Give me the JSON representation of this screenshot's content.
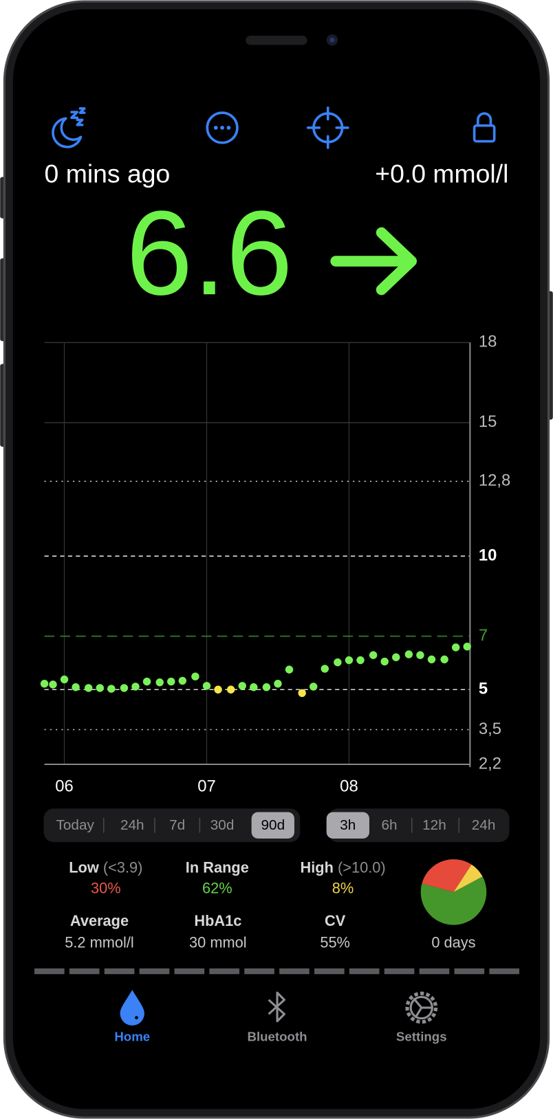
{
  "status": {
    "age": "0 mins ago",
    "delta": "+0.0 mmol/l"
  },
  "reading": {
    "value": 6.6
  },
  "chart_data": {
    "type": "scatter",
    "series": [
      {
        "color": "#7cf05a",
        "x": [
          5.86,
          5.92,
          6.0,
          6.08,
          6.17,
          6.25,
          6.33,
          6.42,
          6.5,
          6.58,
          6.67,
          6.75,
          6.83,
          6.92,
          7.0,
          7.25,
          7.33,
          7.42,
          7.5,
          7.58,
          7.75,
          7.83,
          7.92,
          8.0,
          8.08,
          8.17,
          8.25,
          8.33,
          8.42,
          8.5,
          8.58,
          8.67,
          8.75,
          8.83
        ],
        "values": [
          5.22,
          5.19,
          5.38,
          5.09,
          5.06,
          5.06,
          5.03,
          5.06,
          5.11,
          5.3,
          5.27,
          5.3,
          5.33,
          5.49,
          5.14,
          5.14,
          5.09,
          5.09,
          5.22,
          5.75,
          5.11,
          5.78,
          6.02,
          6.1,
          6.1,
          6.29,
          6.05,
          6.21,
          6.32,
          6.29,
          6.13,
          6.13,
          6.58,
          6.61
        ]
      },
      {
        "color": "#f5e54a",
        "x": [
          7.08,
          7.17,
          7.67
        ],
        "values": [
          5.0,
          5.0,
          4.87
        ]
      }
    ],
    "xlim": [
      5.86,
      8.85
    ],
    "xticks": [
      {
        "value": 6,
        "label": "06"
      },
      {
        "value": 7,
        "label": "07"
      },
      {
        "value": 8,
        "label": "08"
      }
    ],
    "ylim": [
      2.2,
      18
    ],
    "yticks": [
      {
        "value": 2.2,
        "label": "2,2"
      },
      {
        "value": 3.5,
        "label": "3,5"
      },
      5,
      7,
      10,
      {
        "value": 12.8,
        "label": "12,8"
      },
      15,
      18
    ]
  },
  "periods": {
    "options": [
      "Today",
      "24h",
      "7d",
      "30d",
      "90d"
    ],
    "selected": 4
  },
  "windows": {
    "options": [
      "3h",
      "6h",
      "12h",
      "24h"
    ],
    "selected": 0
  },
  "stats": {
    "low": {
      "label": "Low",
      "threshold": "(<3.9)",
      "value": 30,
      "value_label": "30%",
      "color": "#e8574a",
      "pie_color": "#e64a3a"
    },
    "in_range": {
      "label": "In Range",
      "value": 62,
      "value_label": "62%",
      "color": "#66d14a",
      "pie_color": "#46972b"
    },
    "high": {
      "label": "High",
      "threshold": "(>10.0)",
      "value": 8,
      "value_label": "8%",
      "color": "#f5d24a",
      "pie_color": "#f2d04a"
    },
    "average": {
      "label": "Average",
      "value": "5.2 mmol/l"
    },
    "hba1c": {
      "label": "HbA1c",
      "value": "30 mmol"
    },
    "cv": {
      "label": "CV",
      "value": "55%"
    },
    "days": "0 days"
  },
  "tabs": [
    {
      "label": "Home"
    },
    {
      "label": "Bluetooth"
    },
    {
      "label": "Settings"
    }
  ]
}
